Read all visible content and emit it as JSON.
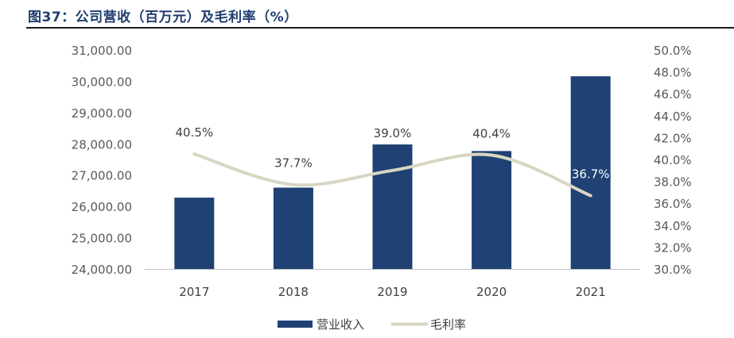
{
  "figure_title": "图37：公司营收（百万元）及毛利率（%）",
  "colors": {
    "bar": "#1f4173",
    "line": "#d8d5c3",
    "axis_text": "#595959",
    "title": "#1f3d6f",
    "axis_line": "#bfbfbf"
  },
  "chart_data": {
    "type": "bar",
    "categories": [
      "2017",
      "2018",
      "2019",
      "2020",
      "2021"
    ],
    "series": [
      {
        "name": "营业收入",
        "type": "bar",
        "axis": "left",
        "values": [
          26280,
          26600,
          27980,
          27770,
          30160
        ]
      },
      {
        "name": "毛利率",
        "type": "line",
        "axis": "right",
        "values": [
          40.5,
          37.7,
          39.0,
          40.4,
          36.7
        ],
        "labels": [
          "40.5%",
          "37.7%",
          "39.0%",
          "40.4%",
          "36.7%"
        ]
      }
    ],
    "y_left": {
      "min": 24000,
      "max": 31000,
      "ticks": [
        "24,000.00",
        "25,000.00",
        "26,000.00",
        "27,000.00",
        "28,000.00",
        "29,000.00",
        "30,000.00",
        "31,000.00"
      ]
    },
    "y_right": {
      "min": 30,
      "max": 50,
      "ticks": [
        "30.0%",
        "32.0%",
        "34.0%",
        "36.0%",
        "38.0%",
        "40.0%",
        "42.0%",
        "44.0%",
        "46.0%",
        "48.0%",
        "50.0%"
      ]
    },
    "grid": false,
    "legend": "bottom-center"
  }
}
